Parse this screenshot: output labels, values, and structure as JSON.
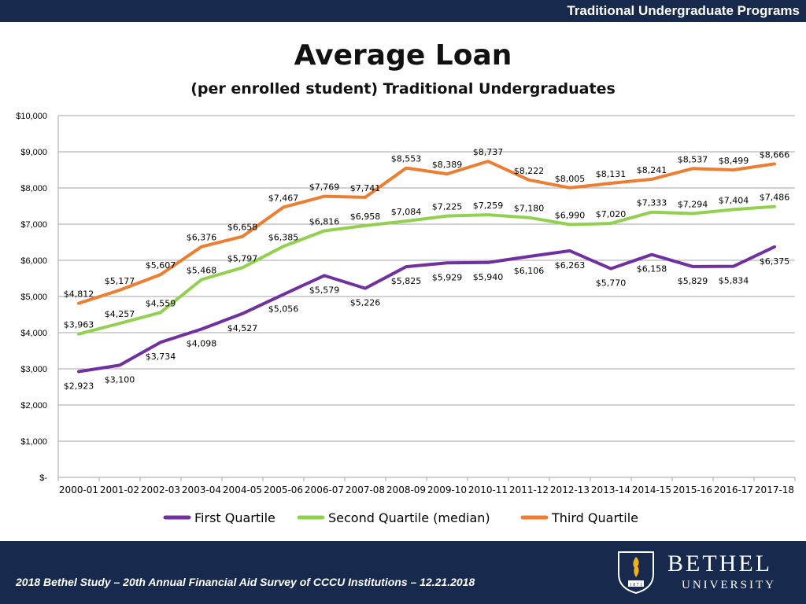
{
  "header": {
    "program": "Traditional Undergraduate Programs"
  },
  "footer": {
    "study": "2018 Bethel Study – 20th Annual Financial Aid Survey of CCCU Institutions – 12.21.2018",
    "logo_name": "BETHEL",
    "logo_sub": "UNIVERSITY",
    "logo_year": "1 8 7 1"
  },
  "colors": {
    "bar": "#172a4e",
    "grid": "#a6a6a6"
  },
  "chart_data": {
    "type": "line",
    "title": "Average Loan",
    "subtitle": "(per enrolled student) Traditional Undergraduates",
    "xlabel": "",
    "ylabel": "",
    "ylim": [
      0,
      10000
    ],
    "yticks": [
      {
        "value": 0,
        "label": "$-"
      },
      {
        "value": 1000,
        "label": "$1,000"
      },
      {
        "value": 2000,
        "label": "$2,000"
      },
      {
        "value": 3000,
        "label": "$3,000"
      },
      {
        "value": 4000,
        "label": "$4,000"
      },
      {
        "value": 5000,
        "label": "$5,000"
      },
      {
        "value": 6000,
        "label": "$6,000"
      },
      {
        "value": 7000,
        "label": "$7,000"
      },
      {
        "value": 8000,
        "label": "$8,000"
      },
      {
        "value": 9000,
        "label": "$9,000"
      },
      {
        "value": 10000,
        "label": "$10,000"
      }
    ],
    "grid": true,
    "legend_position": "bottom",
    "categories": [
      "2000-01",
      "2001-02",
      "2002-03",
      "2003-04",
      "2004-05",
      "2005-06",
      "2006-07",
      "2007-08",
      "2008-09",
      "2009-10",
      "2010-11",
      "2011-12",
      "2012-13",
      "2013-14",
      "2014-15",
      "2015-16",
      "2016-17",
      "2017-18"
    ],
    "series": [
      {
        "name": "First Quartile",
        "color": "#7030a0",
        "values": [
          2923,
          3100,
          3734,
          4098,
          4527,
          5056,
          5579,
          5226,
          5825,
          5929,
          5940,
          6106,
          6263,
          5770,
          6158,
          5829,
          5834,
          6375
        ],
        "labels": [
          "$2,923",
          "$3,100",
          "$3,734",
          "$4,098",
          "$4,527",
          "$5,056",
          "$5,579",
          "$5,226",
          "$5,825",
          "$5,929",
          "$5,940",
          "$6,106",
          "$6,263",
          "$5,770",
          "$6,158",
          "$5,829",
          "$5,834",
          "$6,375"
        ]
      },
      {
        "name": "Second Quartile (median)",
        "color": "#92d050",
        "values": [
          3963,
          4257,
          4559,
          5468,
          5797,
          6385,
          6816,
          6958,
          7084,
          7225,
          7259,
          7180,
          6990,
          7020,
          7333,
          7294,
          7404,
          7486
        ],
        "labels": [
          "$3,963",
          "$4,257",
          "$4,559",
          "$5,468",
          "$5,797",
          "$6,385",
          "$6,816",
          "$6,958",
          "$7,084",
          "$7,225",
          "$7,259",
          "$7,180",
          "$6,990",
          "$7,020",
          "$7,333",
          "$7,294",
          "$7,404",
          "$7,486"
        ]
      },
      {
        "name": "Third Quartile",
        "color": "#ed7d31",
        "values": [
          4812,
          5177,
          5607,
          6376,
          6658,
          7467,
          7769,
          7741,
          8553,
          8389,
          8737,
          8222,
          8005,
          8131,
          8241,
          8537,
          8499,
          8666
        ],
        "labels": [
          "$4,812",
          "$5,177",
          "$5,607",
          "$6,376",
          "$6,658",
          "$7,467",
          "$7,769",
          "$7,741",
          "$8,553",
          "$8,389",
          "$8,737",
          "$8,222",
          "$8,005",
          "$8,131",
          "$8,241",
          "$8,537",
          "$8,499",
          "$8,666"
        ]
      }
    ]
  }
}
